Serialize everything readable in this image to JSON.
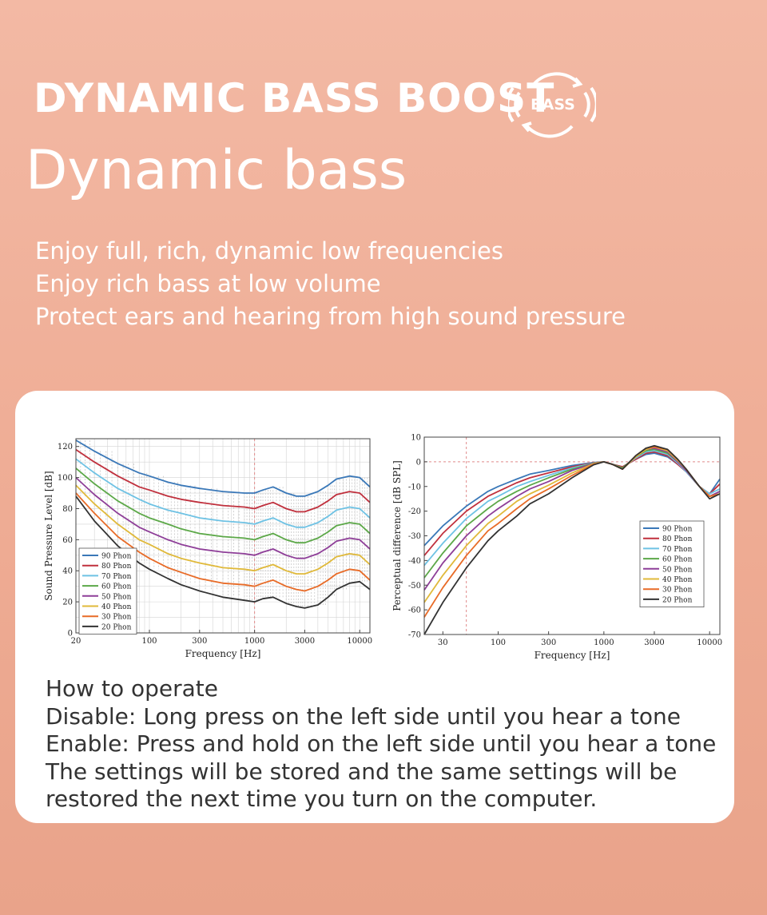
{
  "header": {
    "headline": "DYNAMIC BASS BOOST",
    "badge_label": "BASS",
    "subhead": "Dynamic bass"
  },
  "features": [
    "Enjoy full, rich, dynamic low frequencies",
    "Enjoy rich bass at low volume",
    "Protect ears and hearing from high sound pressure"
  ],
  "operation": [
    "How to operate",
    "Disable: Long press on the left side until you hear a tone",
    "Enable: Press and hold on the left side until you hear a tone",
    "The settings will be stored and the same settings will be",
    "restored the next time you turn on the computer."
  ],
  "colors": {
    "background": "#f0b09a",
    "card": "#ffffff",
    "text": "#ffffff"
  },
  "chart_data": [
    {
      "type": "line",
      "title": "",
      "xlabel": "Frequency [Hz]",
      "ylabel": "Sound Pressure Level [dB]",
      "xscale": "log",
      "xlim": [
        20,
        12500
      ],
      "ylim": [
        0,
        125
      ],
      "xticks": [
        20,
        100,
        300,
        1000,
        3000,
        10000
      ],
      "xtick_labels": [
        "20",
        "100",
        "300",
        "1000",
        "3000",
        "10000"
      ],
      "yticks": [
        0,
        20,
        40,
        60,
        80,
        100,
        120
      ],
      "grid": true,
      "reference_line_x": 1000,
      "legend_position": "bottom-left",
      "x": [
        20,
        30,
        50,
        80,
        100,
        150,
        200,
        300,
        500,
        800,
        1000,
        1200,
        1500,
        2000,
        2500,
        3000,
        4000,
        5000,
        6000,
        8000,
        10000,
        12500
      ],
      "series": [
        {
          "name": "90 Phon",
          "color": "#3a78b8",
          "values": [
            124,
            117,
            109,
            103,
            101,
            97,
            95,
            93,
            91,
            90,
            90,
            92,
            94,
            90,
            88,
            88,
            91,
            95,
            99,
            101,
            100,
            94
          ]
        },
        {
          "name": "80 Phon",
          "color": "#c0303d",
          "values": [
            118,
            110,
            101,
            94,
            92,
            88,
            86,
            84,
            82,
            81,
            80,
            82,
            84,
            80,
            78,
            78,
            81,
            85,
            89,
            91,
            90,
            84
          ]
        },
        {
          "name": "70 Phon",
          "color": "#6ec2e4",
          "values": [
            112,
            103,
            93,
            86,
            83,
            79,
            77,
            74,
            72,
            71,
            70,
            72,
            74,
            70,
            68,
            68,
            71,
            75,
            79,
            81,
            80,
            74
          ]
        },
        {
          "name": "60 Phon",
          "color": "#5ca848",
          "values": [
            106,
            96,
            85,
            77,
            74,
            70,
            67,
            64,
            62,
            61,
            60,
            62,
            64,
            60,
            58,
            58,
            61,
            65,
            69,
            71,
            70,
            64
          ]
        },
        {
          "name": "50 Phon",
          "color": "#8e3e98",
          "values": [
            100,
            89,
            77,
            68,
            65,
            60,
            57,
            54,
            52,
            51,
            50,
            52,
            54,
            50,
            48,
            48,
            51,
            55,
            59,
            61,
            60,
            54
          ]
        },
        {
          "name": "40 Phon",
          "color": "#e0b93a",
          "values": [
            95,
            83,
            70,
            60,
            57,
            51,
            48,
            45,
            42,
            41,
            40,
            42,
            44,
            40,
            38,
            38,
            41,
            45,
            49,
            51,
            50,
            44
          ]
        },
        {
          "name": "30 Phon",
          "color": "#e86b27",
          "values": [
            90,
            77,
            62,
            52,
            48,
            42,
            39,
            35,
            32,
            31,
            30,
            32,
            34,
            30,
            28,
            27,
            30,
            34,
            38,
            41,
            40,
            34
          ]
        },
        {
          "name": "20 Phon",
          "color": "#333333",
          "values": [
            88,
            72,
            56,
            45,
            41,
            35,
            31,
            27,
            23,
            21,
            20,
            22,
            23,
            19,
            17,
            16,
            18,
            23,
            28,
            32,
            33,
            28
          ]
        }
      ]
    },
    {
      "type": "line",
      "title": "",
      "xlabel": "Frequency [Hz]",
      "ylabel": "Perceptual difference [dB SPL]",
      "xscale": "log",
      "xlim": [
        20,
        12500
      ],
      "ylim": [
        -70,
        10
      ],
      "xticks": [
        30,
        100,
        300,
        1000,
        3000,
        10000
      ],
      "xtick_labels": [
        "30",
        "100",
        "300",
        "1000",
        "3000",
        "10000"
      ],
      "yticks": [
        -70,
        -60,
        -50,
        -40,
        -30,
        -20,
        -10,
        0,
        10
      ],
      "grid": false,
      "reference_line_y": 0,
      "reference_line_x": 50,
      "legend_position": "right",
      "x": [
        20,
        30,
        50,
        80,
        100,
        150,
        200,
        300,
        500,
        800,
        1000,
        1200,
        1500,
        2000,
        2500,
        3000,
        4000,
        5000,
        6000,
        8000,
        10000,
        12500
      ],
      "series": [
        {
          "name": "90 Phon",
          "color": "#3a78b8",
          "values": [
            -34,
            -26,
            -18,
            -12,
            -10,
            -7,
            -5,
            -3.5,
            -1.5,
            -0.3,
            0,
            -1,
            -2,
            1,
            3,
            3.5,
            2,
            -1,
            -4,
            -10,
            -13,
            -7
          ]
        },
        {
          "name": "80 Phon",
          "color": "#c0303d",
          "values": [
            -38,
            -29,
            -20,
            -14,
            -12,
            -8.5,
            -6.5,
            -4.5,
            -2,
            -0.4,
            0,
            -1,
            -2,
            1,
            3.5,
            4,
            2.5,
            -1,
            -4,
            -10,
            -13,
            -9
          ]
        },
        {
          "name": "70 Phon",
          "color": "#6ec2e4",
          "values": [
            -42,
            -33,
            -23,
            -16,
            -14,
            -10,
            -8,
            -5.5,
            -2.5,
            -0.5,
            0,
            -1,
            -2.5,
            1.5,
            4,
            4.5,
            3,
            -0.5,
            -4,
            -10,
            -13,
            -11
          ]
        },
        {
          "name": "60 Phon",
          "color": "#5ca848",
          "values": [
            -47,
            -37,
            -26,
            -19,
            -16,
            -12,
            -9.5,
            -6.5,
            -3,
            -0.6,
            0,
            -1,
            -2.5,
            2,
            4.5,
            5,
            3.5,
            0,
            -3.5,
            -10,
            -14,
            -12
          ]
        },
        {
          "name": "50 Phon",
          "color": "#8e3e98",
          "values": [
            -52,
            -41,
            -30,
            -22,
            -19,
            -14,
            -11,
            -8,
            -3.5,
            -0.7,
            0,
            -1,
            -3,
            2,
            5,
            5.5,
            4,
            0,
            -3.5,
            -10,
            -14,
            -12
          ]
        },
        {
          "name": "40 Phon",
          "color": "#e0b93a",
          "values": [
            -57,
            -46,
            -34,
            -25,
            -22,
            -16,
            -13,
            -9.5,
            -4.5,
            -0.8,
            0,
            -1,
            -3,
            2,
            5,
            6,
            4.5,
            0.5,
            -3,
            -10,
            -14,
            -13
          ]
        },
        {
          "name": "30 Phon",
          "color": "#e86b27",
          "values": [
            -63,
            -51,
            -38,
            -28,
            -25,
            -19,
            -15,
            -11,
            -5.5,
            -1,
            0,
            -1,
            -3,
            2.5,
            5.5,
            6,
            5,
            1,
            -3,
            -10,
            -14,
            -13
          ]
        },
        {
          "name": "20 Phon",
          "color": "#333333",
          "values": [
            -70,
            -57,
            -43,
            -32,
            -28,
            -22,
            -17,
            -13,
            -6.5,
            -1.2,
            0,
            -1,
            -3,
            2.5,
            5.5,
            6.5,
            5,
            1,
            -3,
            -10,
            -15,
            -13
          ]
        }
      ]
    }
  ]
}
